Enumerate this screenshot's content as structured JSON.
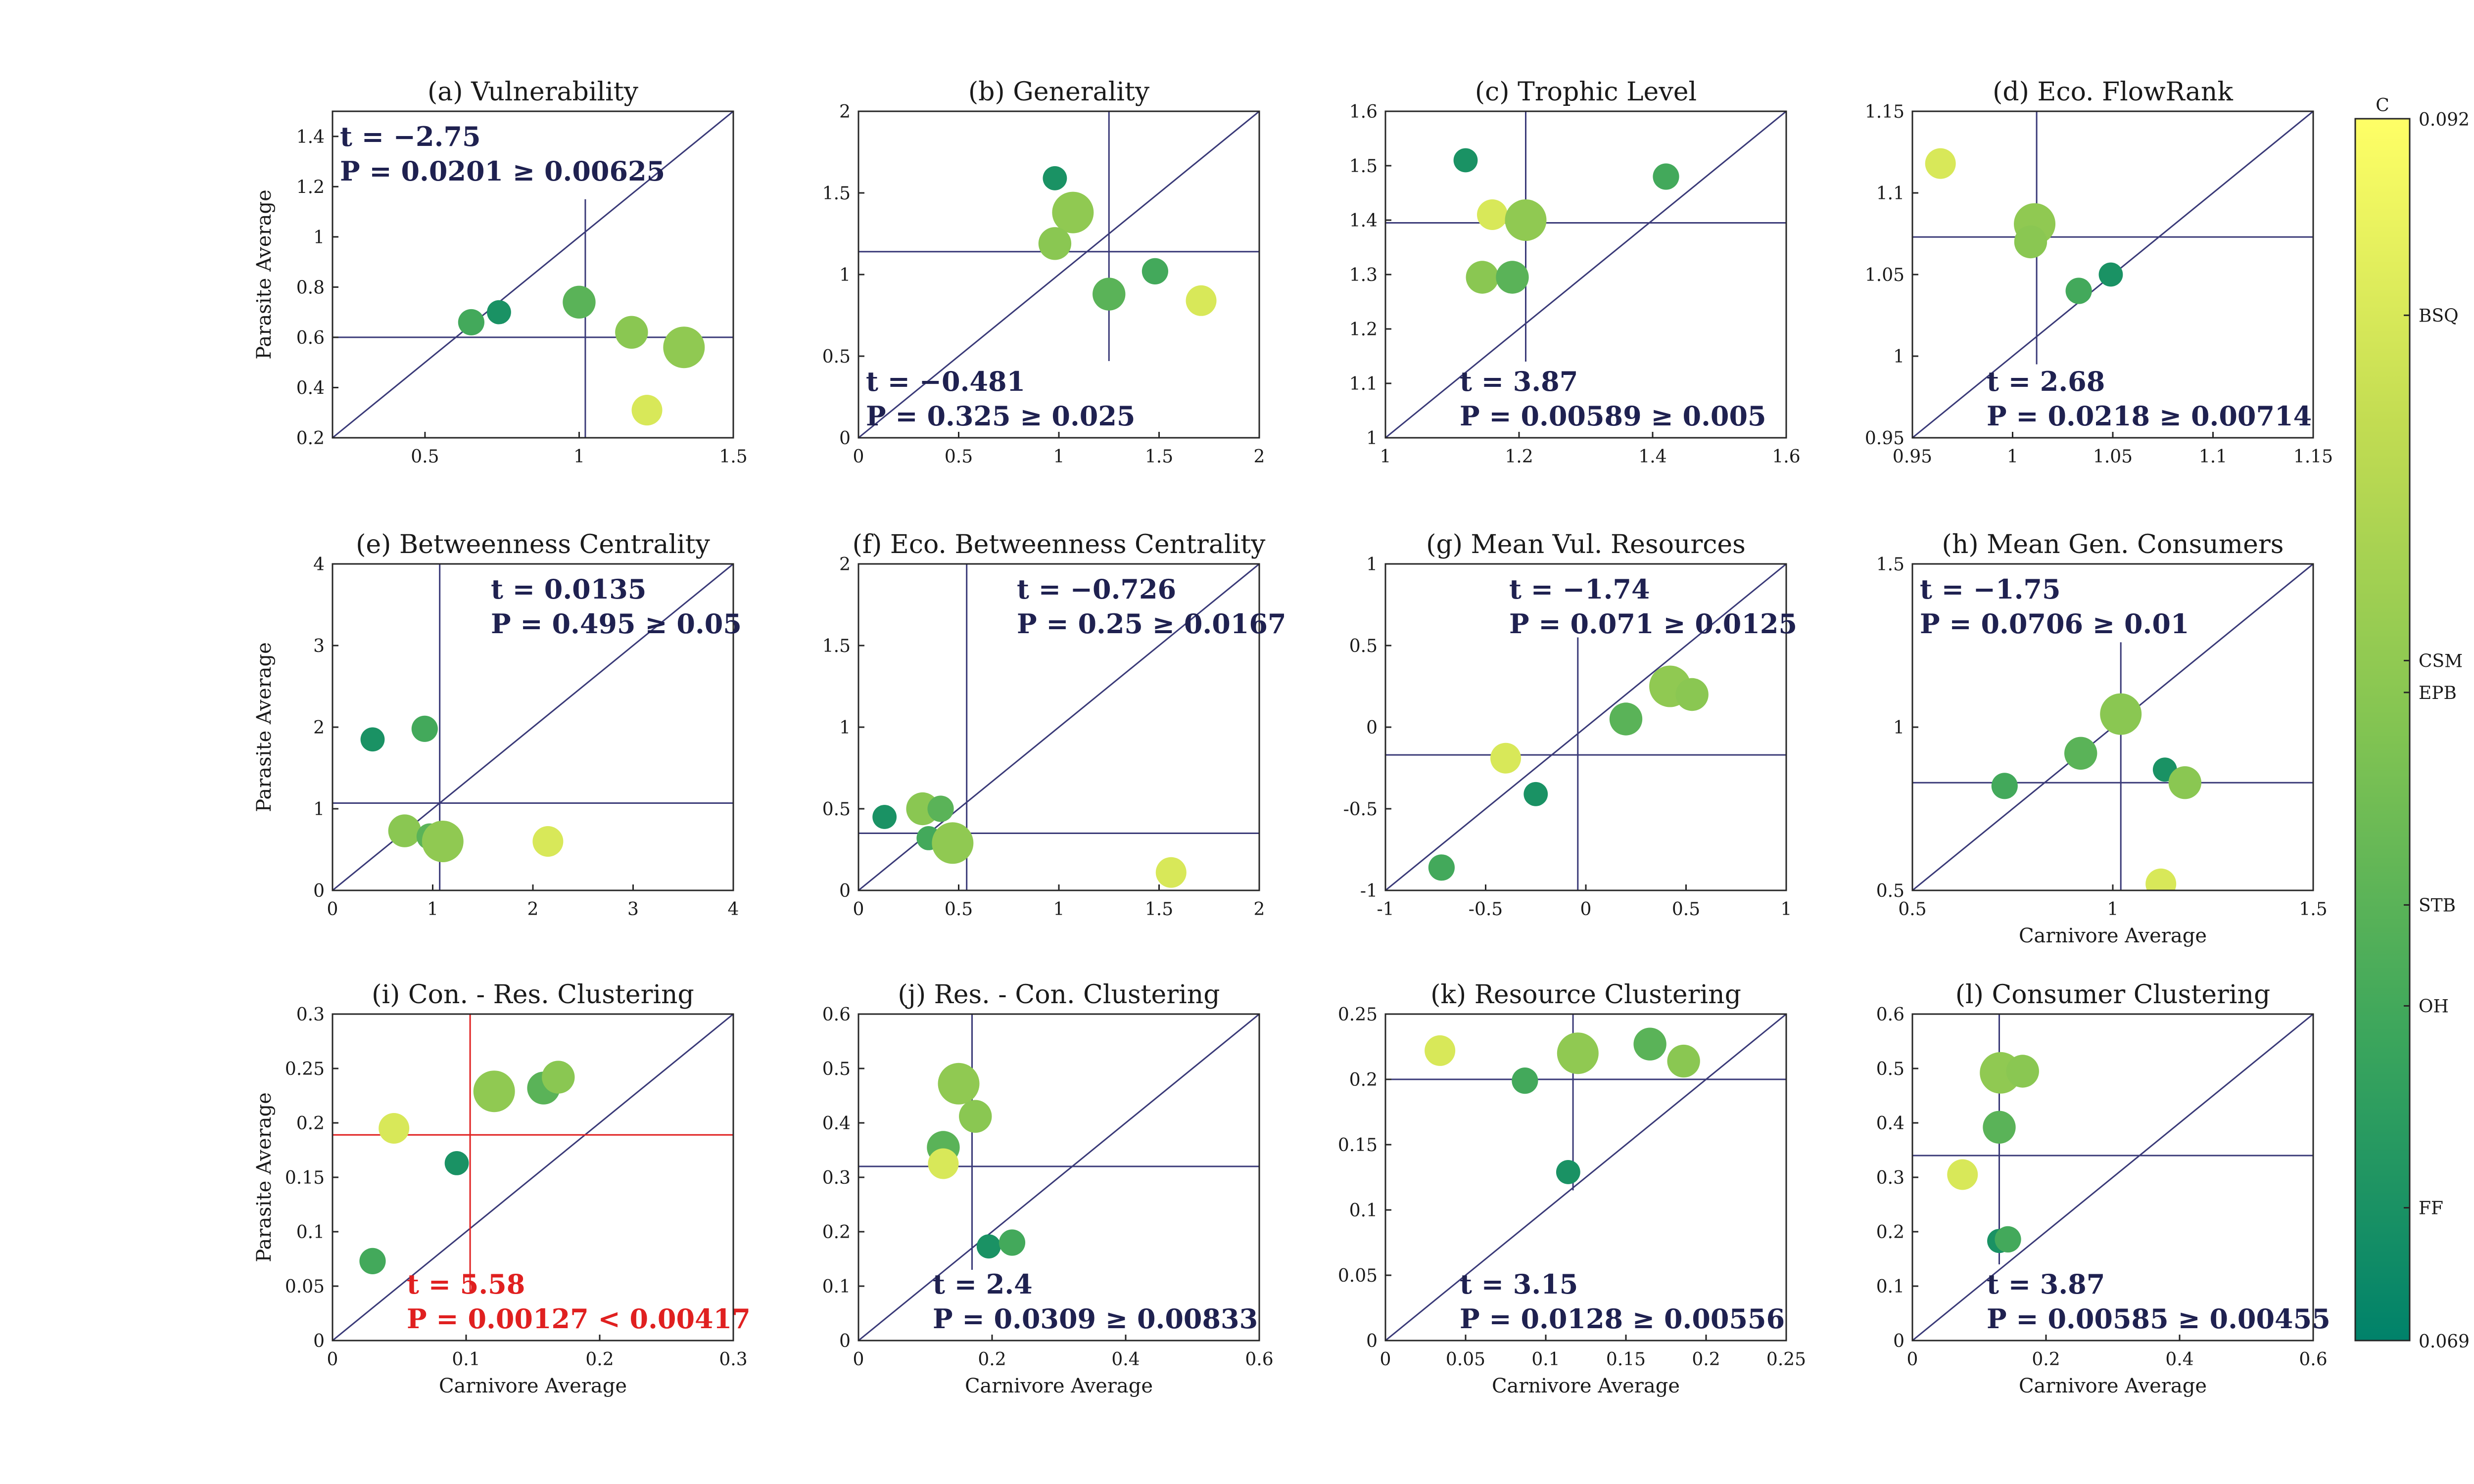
{
  "colors": {
    "axis": "#262626",
    "line": "#3a3a78",
    "stat_text": "#1f2150",
    "highlight": "#e02020",
    "colormap": [
      "#00826a",
      "#3ca65c",
      "#82c452",
      "#c2dc52",
      "#ffff66"
    ]
  },
  "colorbar": {
    "label": "C",
    "min": 0.069,
    "max": 0.092,
    "min_label": "0.069",
    "max_label": "0.092",
    "sites": [
      {
        "name": "BSQ",
        "value": 0.0883
      },
      {
        "name": "CSM",
        "value": 0.0818
      },
      {
        "name": "EPB",
        "value": 0.0812
      },
      {
        "name": "STB",
        "value": 0.0772
      },
      {
        "name": "OH",
        "value": 0.0753
      },
      {
        "name": "FF",
        "value": 0.0715
      }
    ]
  },
  "chart_data": [
    {
      "type": "scatter",
      "title": "(a) Vulnerability",
      "xlabel": "",
      "ylabel": "Parasite Average",
      "xlim": [
        0.2,
        1.5
      ],
      "ylim": [
        0.2,
        1.5
      ],
      "xticks": [
        0.5,
        1,
        1.5
      ],
      "xtick_labels": [
        "0.5",
        "1",
        "1.5"
      ],
      "yticks": [
        0.2,
        0.4,
        0.6,
        0.8,
        1,
        1.2,
        1.4
      ],
      "ytick_labels": [
        "0.2",
        "0.4",
        "0.6",
        "0.8",
        "1",
        "1.2",
        "1.4"
      ],
      "mean_x": 1.02,
      "mean_y": 0.6,
      "vline_span": [
        0.2,
        1.15
      ],
      "hline_span": [
        0.2,
        1.5
      ],
      "stat_t": "t = −2.75",
      "stat_p": "P = 0.0201 ≥ 0.00625",
      "stat_pos": "top-left",
      "highlight": false,
      "points": [
        {
          "x": 0.65,
          "y": 0.66,
          "c": 0.0753,
          "s": 0.3
        },
        {
          "x": 0.74,
          "y": 0.7,
          "c": 0.0715,
          "s": 0.2
        },
        {
          "x": 1.0,
          "y": 0.74,
          "c": 0.0772,
          "s": 0.6
        },
        {
          "x": 1.17,
          "y": 0.62,
          "c": 0.0812,
          "s": 0.6
        },
        {
          "x": 1.34,
          "y": 0.56,
          "c": 0.0818,
          "s": 1.0
        },
        {
          "x": 1.22,
          "y": 0.31,
          "c": 0.0883,
          "s": 0.5
        }
      ]
    },
    {
      "type": "scatter",
      "title": "(b) Generality",
      "xlabel": "",
      "ylabel": "",
      "xlim": [
        0,
        2
      ],
      "ylim": [
        0,
        2
      ],
      "xticks": [
        0,
        0.5,
        1,
        1.5,
        2
      ],
      "xtick_labels": [
        "0",
        "0.5",
        "1",
        "1.5",
        "2"
      ],
      "yticks": [
        0,
        0.5,
        1,
        1.5,
        2
      ],
      "ytick_labels": [
        "0",
        "0.5",
        "1",
        "1.5",
        "2"
      ],
      "mean_x": 1.25,
      "mean_y": 1.14,
      "vline_span": [
        0.47,
        2
      ],
      "hline_span": [
        0,
        2
      ],
      "stat_t": "t = −0.481",
      "stat_p": "P = 0.325 ≥ 0.025",
      "stat_pos": "bottom-left",
      "highlight": false,
      "points": [
        {
          "x": 0.98,
          "y": 1.59,
          "c": 0.0715,
          "s": 0.2
        },
        {
          "x": 1.07,
          "y": 1.38,
          "c": 0.0818,
          "s": 1.0
        },
        {
          "x": 0.98,
          "y": 1.19,
          "c": 0.0812,
          "s": 0.6
        },
        {
          "x": 1.25,
          "y": 0.88,
          "c": 0.0772,
          "s": 0.6
        },
        {
          "x": 1.48,
          "y": 1.02,
          "c": 0.0753,
          "s": 0.3
        },
        {
          "x": 1.71,
          "y": 0.84,
          "c": 0.0883,
          "s": 0.5
        }
      ]
    },
    {
      "type": "scatter",
      "title": "(c) Trophic Level",
      "xlabel": "",
      "ylabel": "",
      "xlim": [
        1,
        1.6
      ],
      "ylim": [
        1,
        1.6
      ],
      "xticks": [
        1,
        1.2,
        1.4,
        1.6
      ],
      "xtick_labels": [
        "1",
        "1.2",
        "1.4",
        "1.6"
      ],
      "yticks": [
        1,
        1.1,
        1.2,
        1.3,
        1.4,
        1.5,
        1.6
      ],
      "ytick_labels": [
        "1",
        "1.1",
        "1.2",
        "1.3",
        "1.4",
        "1.5",
        "1.6"
      ],
      "mean_x": 1.21,
      "mean_y": 1.395,
      "vline_span": [
        1.14,
        1.6
      ],
      "hline_span": [
        1,
        1.6
      ],
      "stat_t": "t = 3.87",
      "stat_p": "P = 0.00589 ≥ 0.005",
      "stat_pos": "bottom-center",
      "highlight": false,
      "points": [
        {
          "x": 1.12,
          "y": 1.51,
          "c": 0.0715,
          "s": 0.2
        },
        {
          "x": 1.42,
          "y": 1.48,
          "c": 0.0753,
          "s": 0.3
        },
        {
          "x": 1.16,
          "y": 1.41,
          "c": 0.0883,
          "s": 0.5
        },
        {
          "x": 1.21,
          "y": 1.4,
          "c": 0.0818,
          "s": 1.0
        },
        {
          "x": 1.145,
          "y": 1.295,
          "c": 0.0812,
          "s": 0.6
        },
        {
          "x": 1.19,
          "y": 1.295,
          "c": 0.0772,
          "s": 0.6
        }
      ]
    },
    {
      "type": "scatter",
      "title": "(d) Eco. FlowRank",
      "xlabel": "",
      "ylabel": "",
      "xlim": [
        0.95,
        1.15
      ],
      "ylim": [
        0.95,
        1.15
      ],
      "xticks": [
        0.95,
        1,
        1.05,
        1.1,
        1.15
      ],
      "xtick_labels": [
        "0.95",
        "1",
        "1.05",
        "1.1",
        "1.15"
      ],
      "yticks": [
        0.95,
        1,
        1.05,
        1.1,
        1.15
      ],
      "ytick_labels": [
        "0.95",
        "1",
        "1.05",
        "1.1",
        "1.15"
      ],
      "mean_x": 1.012,
      "mean_y": 1.073,
      "vline_span": [
        0.995,
        1.15
      ],
      "hline_span": [
        0.95,
        1.15
      ],
      "stat_t": "t = 2.68",
      "stat_p": "P = 0.0218 ≥ 0.00714",
      "stat_pos": "bottom-center",
      "highlight": false,
      "points": [
        {
          "x": 0.964,
          "y": 1.118,
          "c": 0.0883,
          "s": 0.5
        },
        {
          "x": 1.011,
          "y": 1.081,
          "c": 0.0818,
          "s": 1.0
        },
        {
          "x": 1.009,
          "y": 1.07,
          "c": 0.0812,
          "s": 0.6
        },
        {
          "x": 1.033,
          "y": 1.04,
          "c": 0.0753,
          "s": 0.3
        },
        {
          "x": 1.049,
          "y": 1.05,
          "c": 0.0715,
          "s": 0.2
        }
      ]
    },
    {
      "type": "scatter",
      "title": "(e) Betweenness Centrality",
      "xlabel": "",
      "ylabel": "Parasite Average",
      "xlim": [
        0,
        4
      ],
      "ylim": [
        0,
        4
      ],
      "xticks": [
        0,
        1,
        2,
        3,
        4
      ],
      "xtick_labels": [
        "0",
        "1",
        "2",
        "3",
        "4"
      ],
      "yticks": [
        0,
        1,
        2,
        3,
        4
      ],
      "ytick_labels": [
        "0",
        "1",
        "2",
        "3",
        "4"
      ],
      "mean_x": 1.07,
      "mean_y": 1.07,
      "vline_span": [
        0,
        4
      ],
      "hline_span": [
        0,
        4
      ],
      "stat_t": "t = 0.0135",
      "stat_p": "P = 0.495 ≥ 0.05",
      "stat_pos": "top-right",
      "highlight": false,
      "points": [
        {
          "x": 0.4,
          "y": 1.85,
          "c": 0.0715,
          "s": 0.2
        },
        {
          "x": 0.92,
          "y": 1.98,
          "c": 0.0753,
          "s": 0.3
        },
        {
          "x": 0.72,
          "y": 0.73,
          "c": 0.0812,
          "s": 0.6
        },
        {
          "x": 0.97,
          "y": 0.66,
          "c": 0.0772,
          "s": 0.3
        },
        {
          "x": 1.1,
          "y": 0.6,
          "c": 0.0818,
          "s": 1.0
        },
        {
          "x": 2.15,
          "y": 0.6,
          "c": 0.0883,
          "s": 0.5
        }
      ]
    },
    {
      "type": "scatter",
      "title": "(f) Eco. Betweenness Centrality",
      "xlabel": "",
      "ylabel": "",
      "xlim": [
        0,
        2
      ],
      "ylim": [
        0,
        2
      ],
      "xticks": [
        0,
        0.5,
        1,
        1.5,
        2
      ],
      "xtick_labels": [
        "0",
        "0.5",
        "1",
        "1.5",
        "2"
      ],
      "yticks": [
        0,
        0.5,
        1,
        1.5,
        2
      ],
      "ytick_labels": [
        "0",
        "0.5",
        "1",
        "1.5",
        "2"
      ],
      "mean_x": 0.54,
      "mean_y": 0.35,
      "vline_span": [
        0,
        2
      ],
      "hline_span": [
        0,
        2
      ],
      "stat_t": "t = −0.726",
      "stat_p": "P = 0.25 ≥ 0.0167",
      "stat_pos": "top-right",
      "highlight": false,
      "points": [
        {
          "x": 0.13,
          "y": 0.45,
          "c": 0.0715,
          "s": 0.2
        },
        {
          "x": 0.32,
          "y": 0.5,
          "c": 0.0812,
          "s": 0.6
        },
        {
          "x": 0.41,
          "y": 0.5,
          "c": 0.0772,
          "s": 0.3
        },
        {
          "x": 0.35,
          "y": 0.32,
          "c": 0.0753,
          "s": 0.2
        },
        {
          "x": 0.47,
          "y": 0.29,
          "c": 0.0818,
          "s": 1.0
        },
        {
          "x": 1.56,
          "y": 0.11,
          "c": 0.0883,
          "s": 0.5
        }
      ]
    },
    {
      "type": "scatter",
      "title": "(g) Mean Vul. Resources",
      "xlabel": "",
      "ylabel": "",
      "xlim": [
        -1,
        1
      ],
      "ylim": [
        -1,
        1
      ],
      "xticks": [
        -1,
        -0.5,
        0,
        0.5,
        1
      ],
      "xtick_labels": [
        "-1",
        "-0.5",
        "0",
        "0.5",
        "1"
      ],
      "yticks": [
        -1,
        -0.5,
        0,
        0.5,
        1
      ],
      "ytick_labels": [
        "-1",
        "-0.5",
        "0",
        "0.5",
        "1"
      ],
      "mean_x": -0.04,
      "mean_y": -0.17,
      "vline_span": [
        -1,
        0.55
      ],
      "hline_span": [
        -1,
        1
      ],
      "stat_t": "t = −1.74",
      "stat_p": "P = 0.071 ≥ 0.0125",
      "stat_pos": "top-center",
      "highlight": false,
      "points": [
        {
          "x": 0.42,
          "y": 0.25,
          "c": 0.0818,
          "s": 1.0
        },
        {
          "x": 0.53,
          "y": 0.2,
          "c": 0.0812,
          "s": 0.6
        },
        {
          "x": 0.2,
          "y": 0.05,
          "c": 0.0772,
          "s": 0.6
        },
        {
          "x": -0.4,
          "y": -0.19,
          "c": 0.0883,
          "s": 0.5
        },
        {
          "x": -0.25,
          "y": -0.41,
          "c": 0.0715,
          "s": 0.2
        },
        {
          "x": -0.72,
          "y": -0.86,
          "c": 0.0753,
          "s": 0.3
        }
      ]
    },
    {
      "type": "scatter",
      "title": "(h) Mean Gen. Consumers",
      "xlabel": "Carnivore Average",
      "ylabel": "",
      "xlim": [
        0.5,
        1.5
      ],
      "ylim": [
        0.5,
        1.5
      ],
      "xticks": [
        0.5,
        1,
        1.5
      ],
      "xtick_labels": [
        "0.5",
        "1",
        "1.5"
      ],
      "yticks": [
        0.5,
        1,
        1.5
      ],
      "ytick_labels": [
        "0.5",
        "1",
        "1.5"
      ],
      "mean_x": 1.02,
      "mean_y": 0.83,
      "vline_span": [
        0.5,
        1.26
      ],
      "hline_span": [
        0.5,
        1.5
      ],
      "stat_t": "t = −1.75",
      "stat_p": "P = 0.0706 ≥ 0.01",
      "stat_pos": "top-left",
      "highlight": false,
      "points": [
        {
          "x": 1.02,
          "y": 1.04,
          "c": 0.0812,
          "s": 1.0
        },
        {
          "x": 0.92,
          "y": 0.92,
          "c": 0.0772,
          "s": 0.6
        },
        {
          "x": 0.73,
          "y": 0.82,
          "c": 0.0753,
          "s": 0.3
        },
        {
          "x": 1.13,
          "y": 0.87,
          "c": 0.0715,
          "s": 0.2
        },
        {
          "x": 1.18,
          "y": 0.83,
          "c": 0.0812,
          "s": 0.6
        },
        {
          "x": 1.12,
          "y": 0.52,
          "c": 0.0883,
          "s": 0.5
        }
      ]
    },
    {
      "type": "scatter",
      "title": "(i) Con. - Res. Clustering",
      "xlabel": "Carnivore Average",
      "ylabel": "Parasite Average",
      "xlim": [
        0,
        0.3
      ],
      "ylim": [
        0,
        0.3
      ],
      "xticks": [
        0,
        0.1,
        0.2,
        0.3
      ],
      "xtick_labels": [
        "0",
        "0.1",
        "0.2",
        "0.3"
      ],
      "yticks": [
        0,
        0.05,
        0.1,
        0.15,
        0.2,
        0.25,
        0.3
      ],
      "ytick_labels": [
        "0",
        "0.05",
        "0.1",
        "0.15",
        "0.2",
        "0.25",
        "0.3"
      ],
      "mean_x": 0.103,
      "mean_y": 0.189,
      "vline_span": [
        0.045,
        0.3
      ],
      "hline_span": [
        0,
        0.3
      ],
      "stat_t": "t = 5.58",
      "stat_p": "P = 0.00127 < 0.00417",
      "stat_pos": "bottom-center",
      "highlight": true,
      "points": [
        {
          "x": 0.121,
          "y": 0.229,
          "c": 0.0818,
          "s": 1.0
        },
        {
          "x": 0.158,
          "y": 0.232,
          "c": 0.0772,
          "s": 0.6
        },
        {
          "x": 0.169,
          "y": 0.242,
          "c": 0.0812,
          "s": 0.6
        },
        {
          "x": 0.046,
          "y": 0.195,
          "c": 0.0883,
          "s": 0.5
        },
        {
          "x": 0.093,
          "y": 0.163,
          "c": 0.0715,
          "s": 0.2
        },
        {
          "x": 0.03,
          "y": 0.073,
          "c": 0.0753,
          "s": 0.3
        }
      ]
    },
    {
      "type": "scatter",
      "title": "(j) Res. - Con. Clustering",
      "xlabel": "Carnivore Average",
      "ylabel": "",
      "xlim": [
        0,
        0.6
      ],
      "ylim": [
        0,
        0.6
      ],
      "xticks": [
        0,
        0.2,
        0.4,
        0.6
      ],
      "xtick_labels": [
        "0",
        "0.2",
        "0.4",
        "0.6"
      ],
      "yticks": [
        0,
        0.1,
        0.2,
        0.3,
        0.4,
        0.5,
        0.6
      ],
      "ytick_labels": [
        "0",
        "0.1",
        "0.2",
        "0.3",
        "0.4",
        "0.5",
        "0.6"
      ],
      "mean_x": 0.17,
      "mean_y": 0.32,
      "vline_span": [
        0.13,
        0.6
      ],
      "hline_span": [
        0,
        0.6
      ],
      "stat_t": "t = 2.4",
      "stat_p": "P = 0.0309 ≥ 0.00833",
      "stat_pos": "bottom-center",
      "highlight": false,
      "points": [
        {
          "x": 0.15,
          "y": 0.472,
          "c": 0.0818,
          "s": 1.0
        },
        {
          "x": 0.175,
          "y": 0.412,
          "c": 0.0812,
          "s": 0.6
        },
        {
          "x": 0.127,
          "y": 0.355,
          "c": 0.0772,
          "s": 0.6
        },
        {
          "x": 0.127,
          "y": 0.325,
          "c": 0.0883,
          "s": 0.5
        },
        {
          "x": 0.195,
          "y": 0.173,
          "c": 0.0715,
          "s": 0.2
        },
        {
          "x": 0.23,
          "y": 0.18,
          "c": 0.0753,
          "s": 0.3
        }
      ]
    },
    {
      "type": "scatter",
      "title": "(k) Resource Clustering",
      "xlabel": "Carnivore Average",
      "ylabel": "",
      "xlim": [
        0,
        0.25
      ],
      "ylim": [
        0,
        0.25
      ],
      "xticks": [
        0,
        0.05,
        0.1,
        0.15,
        0.2,
        0.25
      ],
      "xtick_labels": [
        "0",
        "0.05",
        "0.1",
        "0.15",
        "0.2",
        "0.25"
      ],
      "yticks": [
        0,
        0.05,
        0.1,
        0.15,
        0.2,
        0.25
      ],
      "ytick_labels": [
        "0",
        "0.05",
        "0.1",
        "0.15",
        "0.2",
        "0.25"
      ],
      "mean_x": 0.117,
      "mean_y": 0.2,
      "vline_span": [
        0.115,
        0.25
      ],
      "hline_span": [
        0,
        0.25
      ],
      "stat_t": "t = 3.15",
      "stat_p": "P = 0.0128 ≥ 0.00556",
      "stat_pos": "bottom-center",
      "highlight": false,
      "points": [
        {
          "x": 0.034,
          "y": 0.222,
          "c": 0.0883,
          "s": 0.5
        },
        {
          "x": 0.12,
          "y": 0.22,
          "c": 0.0818,
          "s": 1.0
        },
        {
          "x": 0.165,
          "y": 0.227,
          "c": 0.0772,
          "s": 0.6
        },
        {
          "x": 0.186,
          "y": 0.214,
          "c": 0.0812,
          "s": 0.6
        },
        {
          "x": 0.087,
          "y": 0.199,
          "c": 0.0753,
          "s": 0.3
        },
        {
          "x": 0.114,
          "y": 0.129,
          "c": 0.0715,
          "s": 0.2
        }
      ]
    },
    {
      "type": "scatter",
      "title": "(l) Consumer Clustering",
      "xlabel": "Carnivore Average",
      "ylabel": "",
      "xlim": [
        0,
        0.6
      ],
      "ylim": [
        0,
        0.6
      ],
      "xticks": [
        0,
        0.2,
        0.4,
        0.6
      ],
      "xtick_labels": [
        "0",
        "0.2",
        "0.4",
        "0.6"
      ],
      "yticks": [
        0,
        0.1,
        0.2,
        0.3,
        0.4,
        0.5,
        0.6
      ],
      "ytick_labels": [
        "0",
        "0.1",
        "0.2",
        "0.3",
        "0.4",
        "0.5",
        "0.6"
      ],
      "mean_x": 0.13,
      "mean_y": 0.34,
      "vline_span": [
        0.14,
        0.6
      ],
      "hline_span": [
        0,
        0.6
      ],
      "stat_t": "t = 3.87",
      "stat_p": "P = 0.00585 ≥ 0.00455",
      "stat_pos": "bottom-center",
      "highlight": false,
      "points": [
        {
          "x": 0.132,
          "y": 0.492,
          "c": 0.0818,
          "s": 1.0
        },
        {
          "x": 0.165,
          "y": 0.495,
          "c": 0.0812,
          "s": 0.6
        },
        {
          "x": 0.13,
          "y": 0.392,
          "c": 0.0772,
          "s": 0.6
        },
        {
          "x": 0.075,
          "y": 0.305,
          "c": 0.0883,
          "s": 0.5
        },
        {
          "x": 0.13,
          "y": 0.183,
          "c": 0.0715,
          "s": 0.2
        },
        {
          "x": 0.143,
          "y": 0.186,
          "c": 0.0753,
          "s": 0.3
        }
      ]
    }
  ]
}
